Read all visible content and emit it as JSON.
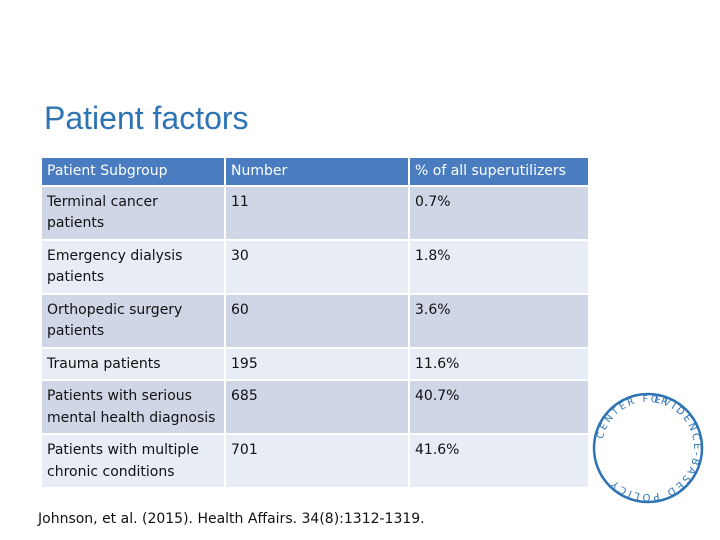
{
  "slide": {
    "title": "Patient factors",
    "citation": "Johnson, et al. (2015). Health Affairs. 34(8):1312-1319."
  },
  "table": {
    "headers": [
      "Patient Subgroup",
      "Number",
      "% of all superutilizers"
    ],
    "rows": [
      {
        "subgroup": "Terminal cancer patients",
        "number": "11",
        "percent": "0.7%"
      },
      {
        "subgroup": "Emergency dialysis patients",
        "number": "30",
        "percent": "1.8%"
      },
      {
        "subgroup": "Orthopedic surgery patients",
        "number": "60",
        "percent": "3.6%"
      },
      {
        "subgroup": "Trauma patients",
        "number": "195",
        "percent": "11.6%"
      },
      {
        "subgroup": "Patients with serious mental health diagnosis",
        "number": "685",
        "percent": "40.7%"
      },
      {
        "subgroup": "Patients with multiple chronic conditions",
        "number": "701",
        "percent": "41.6%"
      }
    ]
  },
  "logo": {
    "text": "EVIDENCE-BASED POLICY CENTER FOR",
    "icon": "center-for-evidence-based-policy-logo",
    "color": "#2e74b5"
  }
}
